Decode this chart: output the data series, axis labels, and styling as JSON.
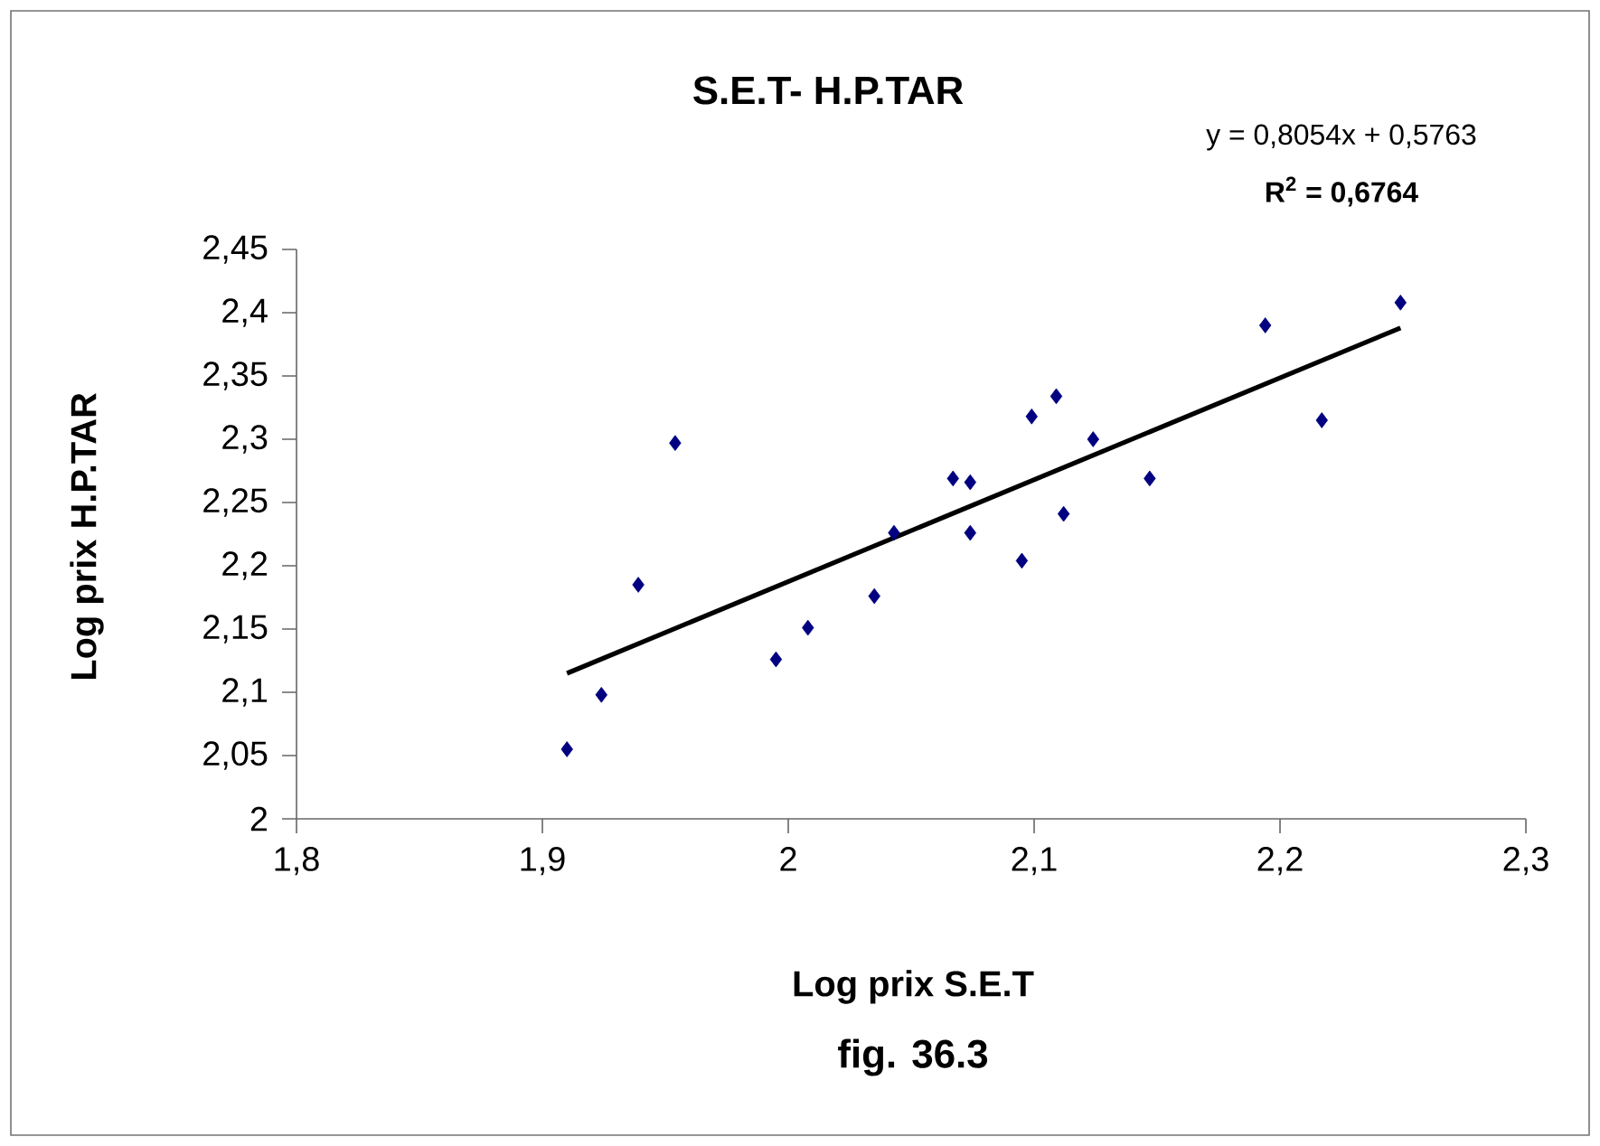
{
  "chart_data": {
    "type": "scatter",
    "title": "S.E.T- H.P.TAR",
    "xlabel": "Log prix S.E.T",
    "ylabel": "Log prix H.P.TAR",
    "annotations": [
      "y = 0,8054x + 0,5763",
      "R$^{2}$ = 0,6764",
      "fig. 36.3"
    ],
    "xlim": [
      1.8,
      2.3
    ],
    "xticks": [
      {
        "value": 1.8,
        "label": "1,8"
      },
      {
        "value": 1.9,
        "label": "1,9"
      },
      {
        "value": 2,
        "label": "2"
      },
      {
        "value": 2.1,
        "label": "2,1"
      },
      {
        "value": 2.2,
        "label": "2,2"
      },
      {
        "value": 2.3,
        "label": "2,3"
      }
    ],
    "ylim": [
      2,
      2.45
    ],
    "yticks": [
      {
        "value": 2,
        "label": "2"
      },
      {
        "value": 2.05,
        "label": "2,05"
      },
      {
        "value": 2.1,
        "label": "2,1"
      },
      {
        "value": 2.15,
        "label": "2,15"
      },
      {
        "value": 2.2,
        "label": "2,2"
      },
      {
        "value": 2.25,
        "label": "2,25"
      },
      {
        "value": 2.3,
        "label": "2,3"
      },
      {
        "value": 2.35,
        "label": "2,35"
      },
      {
        "value": 2.4,
        "label": "2,4"
      },
      {
        "value": 2.45,
        "label": "2,45"
      }
    ],
    "marker": "diamond",
    "series": [
      {
        "type": "scatter",
        "color": "#000080",
        "x": [
          1.91,
          1.924,
          1.939,
          1.954,
          1.995,
          2.008,
          2.035,
          2.043,
          2.067,
          2.074,
          2.074,
          2.095,
          2.099,
          2.109,
          2.112,
          2.124,
          2.147,
          2.194,
          2.217,
          2.249
        ],
        "values": [
          2.055,
          2.098,
          2.185,
          2.297,
          2.126,
          2.151,
          2.176,
          2.226,
          2.269,
          2.266,
          2.226,
          2.204,
          2.318,
          2.334,
          2.241,
          2.3,
          2.269,
          2.39,
          2.315,
          2.408
        ]
      },
      {
        "type": "line",
        "marker": "none",
        "color": "#000000",
        "x": [
          1.91,
          2.249
        ],
        "values": [
          2.115,
          2.388
        ]
      }
    ]
  }
}
